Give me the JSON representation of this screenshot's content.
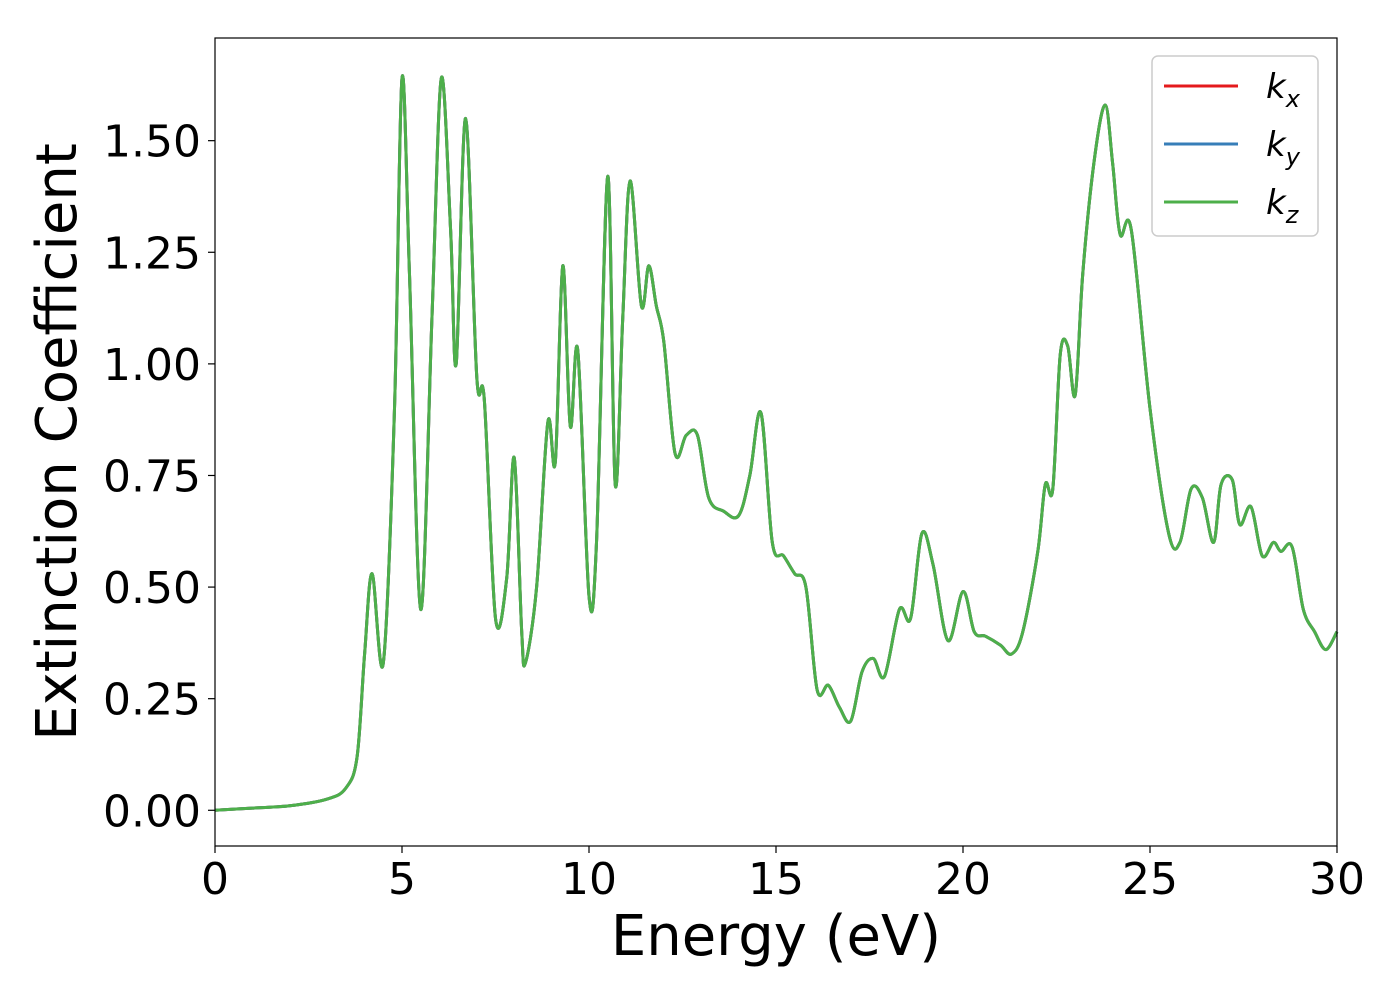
{
  "chart_data": {
    "type": "line",
    "xlabel": "Energy (eV)",
    "ylabel": "Extinction Coefficient",
    "xlim": [
      0,
      30
    ],
    "ylim": [
      -0.08,
      1.73
    ],
    "xticks": [
      0,
      5,
      10,
      15,
      20,
      25,
      30
    ],
    "xtick_labels": [
      "0",
      "5",
      "10",
      "15",
      "20",
      "25",
      "30"
    ],
    "yticks": [
      0.0,
      0.25,
      0.5,
      0.75,
      1.0,
      1.25,
      1.5
    ],
    "ytick_labels": [
      "0.00",
      "0.25",
      "0.50",
      "0.75",
      "1.00",
      "1.25",
      "1.50"
    ],
    "grid": false,
    "legend_position": "top-right",
    "x": [
      0,
      1,
      2,
      3,
      3.5,
      3.8,
      4.0,
      4.2,
      4.5,
      4.8,
      5.0,
      5.2,
      5.5,
      5.8,
      6.05,
      6.3,
      6.45,
      6.7,
      7.0,
      7.2,
      7.5,
      7.8,
      8.0,
      8.2,
      8.3,
      8.6,
      8.9,
      9.1,
      9.3,
      9.5,
      9.7,
      10.0,
      10.2,
      10.5,
      10.7,
      10.9,
      11.1,
      11.4,
      11.6,
      11.8,
      12.0,
      12.3,
      12.6,
      12.9,
      13.2,
      13.6,
      14.0,
      14.3,
      14.6,
      14.9,
      15.2,
      15.5,
      15.8,
      16.1,
      16.4,
      16.7,
      17.0,
      17.3,
      17.6,
      17.9,
      18.3,
      18.6,
      18.9,
      19.2,
      19.6,
      20.0,
      20.3,
      20.6,
      21.0,
      21.3,
      21.6,
      22.0,
      22.2,
      22.4,
      22.6,
      22.8,
      23.0,
      23.2,
      23.5,
      23.8,
      24.0,
      24.2,
      24.5,
      25.0,
      25.5,
      25.8,
      26.1,
      26.4,
      26.7,
      26.9,
      27.2,
      27.4,
      27.7,
      28.0,
      28.3,
      28.5,
      28.8,
      29.1,
      29.4,
      29.7,
      30.0
    ],
    "series": [
      {
        "name": "k_x",
        "color": "#e41a1c",
        "values_same_as": "k_z"
      },
      {
        "name": "k_y",
        "color": "#377eb8",
        "values_same_as": "k_z"
      },
      {
        "name": "k_z",
        "color": "#4daf4a",
        "values": [
          0.0,
          0.005,
          0.01,
          0.025,
          0.05,
          0.12,
          0.35,
          0.53,
          0.33,
          0.9,
          1.64,
          1.2,
          0.45,
          1.1,
          1.64,
          1.3,
          1.0,
          1.55,
          0.97,
          0.92,
          0.43,
          0.52,
          0.79,
          0.4,
          0.33,
          0.5,
          0.87,
          0.78,
          1.22,
          0.86,
          1.03,
          0.48,
          0.6,
          1.42,
          0.73,
          1.1,
          1.41,
          1.13,
          1.22,
          1.13,
          1.05,
          0.8,
          0.84,
          0.84,
          0.7,
          0.67,
          0.66,
          0.75,
          0.89,
          0.6,
          0.57,
          0.53,
          0.5,
          0.27,
          0.28,
          0.23,
          0.2,
          0.31,
          0.34,
          0.3,
          0.45,
          0.43,
          0.62,
          0.55,
          0.38,
          0.49,
          0.4,
          0.39,
          0.37,
          0.35,
          0.4,
          0.58,
          0.73,
          0.72,
          1.02,
          1.04,
          0.93,
          1.2,
          1.45,
          1.58,
          1.45,
          1.29,
          1.3,
          0.9,
          0.62,
          0.6,
          0.72,
          0.7,
          0.6,
          0.73,
          0.74,
          0.64,
          0.68,
          0.57,
          0.6,
          0.58,
          0.59,
          0.45,
          0.4,
          0.36,
          0.4
        ]
      }
    ],
    "legend": [
      {
        "main": "k",
        "sub": "x",
        "color": "#e41a1c"
      },
      {
        "main": "k",
        "sub": "y",
        "color": "#377eb8"
      },
      {
        "main": "k",
        "sub": "z",
        "color": "#4daf4a"
      }
    ]
  }
}
